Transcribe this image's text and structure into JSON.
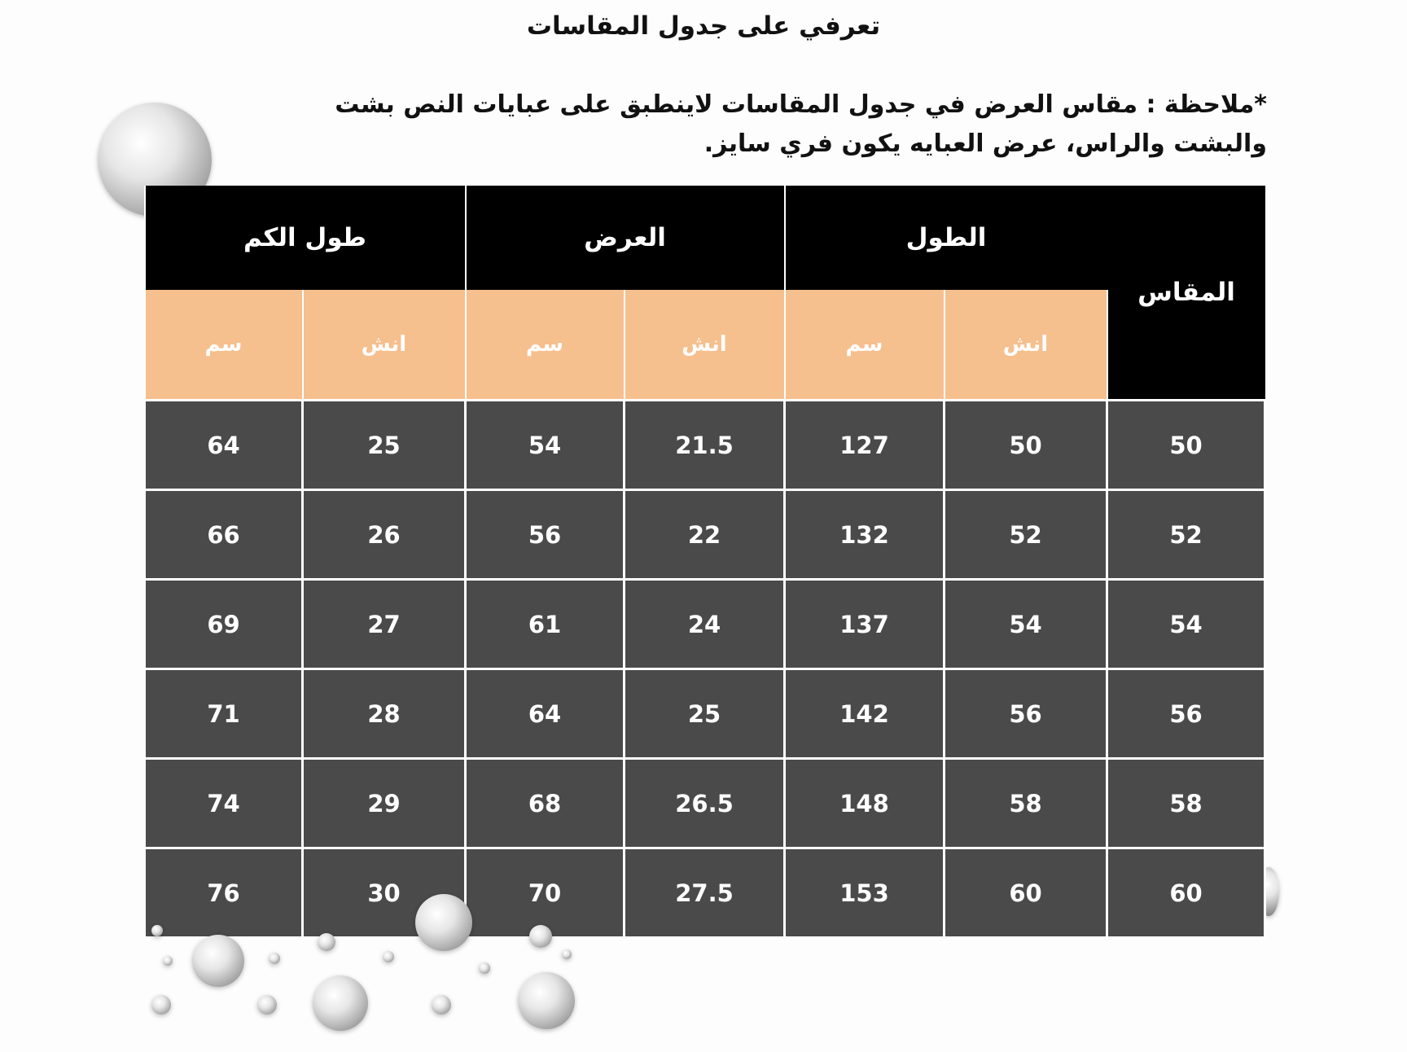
{
  "title": "تعرفي على جدول المقاسات",
  "note": "*ملاحظة : مقاس العرض في جدول المقاسات لاينطبق على عبايات النص بشت والبشت والراس، عرض العبايه يكون فري سايز.",
  "headers": {
    "size": "المقاس",
    "length": "الطول",
    "width": "العرض",
    "sleeve": "طول الكم"
  },
  "units": {
    "inch": "انش",
    "cm": "سم"
  },
  "colors": {
    "header": "#000000",
    "units": "#f6bf8e",
    "cells": "#4a4a4a"
  },
  "rows": [
    {
      "size": "50",
      "length_in": "50",
      "length_cm": "127",
      "width_in": "21.5",
      "width_cm": "54",
      "sleeve_in": "25",
      "sleeve_cm": "64"
    },
    {
      "size": "52",
      "length_in": "52",
      "length_cm": "132",
      "width_in": "22",
      "width_cm": "56",
      "sleeve_in": "26",
      "sleeve_cm": "66"
    },
    {
      "size": "54",
      "length_in": "54",
      "length_cm": "137",
      "width_in": "24",
      "width_cm": "61",
      "sleeve_in": "27",
      "sleeve_cm": "69"
    },
    {
      "size": "56",
      "length_in": "56",
      "length_cm": "142",
      "width_in": "25",
      "width_cm": "64",
      "sleeve_in": "28",
      "sleeve_cm": "71"
    },
    {
      "size": "58",
      "length_in": "58",
      "length_cm": "148",
      "width_in": "26.5",
      "width_cm": "68",
      "sleeve_in": "29",
      "sleeve_cm": "74"
    },
    {
      "size": "60",
      "length_in": "60",
      "length_cm": "153",
      "width_in": "27.5",
      "width_cm": "70",
      "sleeve_in": "30",
      "sleeve_cm": "76"
    }
  ]
}
